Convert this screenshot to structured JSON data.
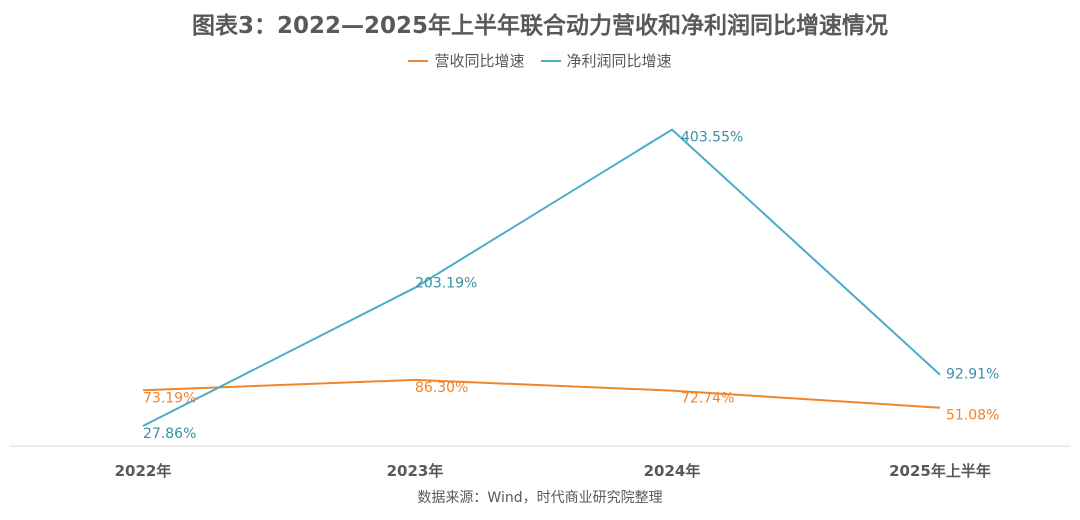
{
  "title": "图表3：2022—2025年上半年联合动力营收和净利润同比增速情况",
  "source": "数据来源：Wind，时代商业研究院整理",
  "colors": {
    "revenue": "#F0852D",
    "net_profit": "#4BACC6",
    "text": "#595959",
    "axis": "#D9D9D9"
  },
  "chart_data": {
    "type": "line",
    "title": "图表3：2022—2025年上半年联合动力营收和净利润同比增速情况",
    "categories": [
      "2022年",
      "2023年",
      "2024年",
      "2025年上半年"
    ],
    "series": [
      {
        "name": "营收同比增速",
        "values": [
          73.19,
          86.3,
          72.74,
          51.08
        ],
        "labels": [
          "73.19%",
          "86.30%",
          "72.74%",
          "51.08%"
        ]
      },
      {
        "name": "净利润同比增速",
        "values": [
          27.86,
          203.19,
          403.55,
          92.91
        ],
        "labels": [
          "27.86%",
          "203.19%",
          "403.55%",
          "92.91%"
        ]
      }
    ],
    "xlabel": "",
    "ylabel": "",
    "ylim": [
      0,
      450
    ],
    "legend_position": "top",
    "grid": false,
    "y_axis_visible": false
  }
}
